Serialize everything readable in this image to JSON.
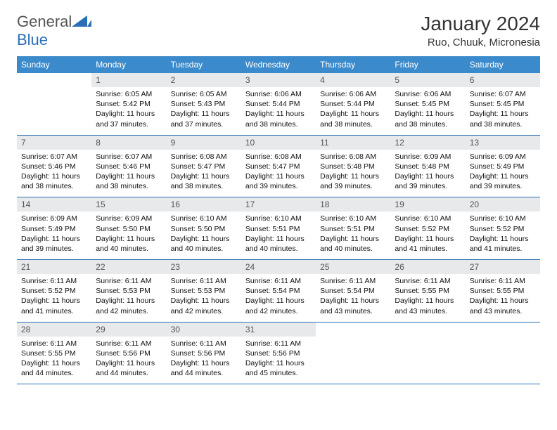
{
  "logo": {
    "text1": "General",
    "text2": "Blue"
  },
  "title": "January 2024",
  "location": "Ruo, Chuuk, Micronesia",
  "colors": {
    "header_bg": "#3b8acb",
    "header_text": "#ffffff",
    "daynum_bg": "#e8e9ea",
    "rule": "#2a6fb5",
    "logo_blue": "#2a6fb5"
  },
  "weekdays": [
    "Sunday",
    "Monday",
    "Tuesday",
    "Wednesday",
    "Thursday",
    "Friday",
    "Saturday"
  ],
  "start_offset": 1,
  "days": [
    {
      "n": 1,
      "sr": "6:05 AM",
      "ss": "5:42 PM",
      "dl": "11 hours and 37 minutes."
    },
    {
      "n": 2,
      "sr": "6:05 AM",
      "ss": "5:43 PM",
      "dl": "11 hours and 37 minutes."
    },
    {
      "n": 3,
      "sr": "6:06 AM",
      "ss": "5:44 PM",
      "dl": "11 hours and 38 minutes."
    },
    {
      "n": 4,
      "sr": "6:06 AM",
      "ss": "5:44 PM",
      "dl": "11 hours and 38 minutes."
    },
    {
      "n": 5,
      "sr": "6:06 AM",
      "ss": "5:45 PM",
      "dl": "11 hours and 38 minutes."
    },
    {
      "n": 6,
      "sr": "6:07 AM",
      "ss": "5:45 PM",
      "dl": "11 hours and 38 minutes."
    },
    {
      "n": 7,
      "sr": "6:07 AM",
      "ss": "5:46 PM",
      "dl": "11 hours and 38 minutes."
    },
    {
      "n": 8,
      "sr": "6:07 AM",
      "ss": "5:46 PM",
      "dl": "11 hours and 38 minutes."
    },
    {
      "n": 9,
      "sr": "6:08 AM",
      "ss": "5:47 PM",
      "dl": "11 hours and 38 minutes."
    },
    {
      "n": 10,
      "sr": "6:08 AM",
      "ss": "5:47 PM",
      "dl": "11 hours and 39 minutes."
    },
    {
      "n": 11,
      "sr": "6:08 AM",
      "ss": "5:48 PM",
      "dl": "11 hours and 39 minutes."
    },
    {
      "n": 12,
      "sr": "6:09 AM",
      "ss": "5:48 PM",
      "dl": "11 hours and 39 minutes."
    },
    {
      "n": 13,
      "sr": "6:09 AM",
      "ss": "5:49 PM",
      "dl": "11 hours and 39 minutes."
    },
    {
      "n": 14,
      "sr": "6:09 AM",
      "ss": "5:49 PM",
      "dl": "11 hours and 39 minutes."
    },
    {
      "n": 15,
      "sr": "6:09 AM",
      "ss": "5:50 PM",
      "dl": "11 hours and 40 minutes."
    },
    {
      "n": 16,
      "sr": "6:10 AM",
      "ss": "5:50 PM",
      "dl": "11 hours and 40 minutes."
    },
    {
      "n": 17,
      "sr": "6:10 AM",
      "ss": "5:51 PM",
      "dl": "11 hours and 40 minutes."
    },
    {
      "n": 18,
      "sr": "6:10 AM",
      "ss": "5:51 PM",
      "dl": "11 hours and 40 minutes."
    },
    {
      "n": 19,
      "sr": "6:10 AM",
      "ss": "5:52 PM",
      "dl": "11 hours and 41 minutes."
    },
    {
      "n": 20,
      "sr": "6:10 AM",
      "ss": "5:52 PM",
      "dl": "11 hours and 41 minutes."
    },
    {
      "n": 21,
      "sr": "6:11 AM",
      "ss": "5:52 PM",
      "dl": "11 hours and 41 minutes."
    },
    {
      "n": 22,
      "sr": "6:11 AM",
      "ss": "5:53 PM",
      "dl": "11 hours and 42 minutes."
    },
    {
      "n": 23,
      "sr": "6:11 AM",
      "ss": "5:53 PM",
      "dl": "11 hours and 42 minutes."
    },
    {
      "n": 24,
      "sr": "6:11 AM",
      "ss": "5:54 PM",
      "dl": "11 hours and 42 minutes."
    },
    {
      "n": 25,
      "sr": "6:11 AM",
      "ss": "5:54 PM",
      "dl": "11 hours and 43 minutes."
    },
    {
      "n": 26,
      "sr": "6:11 AM",
      "ss": "5:55 PM",
      "dl": "11 hours and 43 minutes."
    },
    {
      "n": 27,
      "sr": "6:11 AM",
      "ss": "5:55 PM",
      "dl": "11 hours and 43 minutes."
    },
    {
      "n": 28,
      "sr": "6:11 AM",
      "ss": "5:55 PM",
      "dl": "11 hours and 44 minutes."
    },
    {
      "n": 29,
      "sr": "6:11 AM",
      "ss": "5:56 PM",
      "dl": "11 hours and 44 minutes."
    },
    {
      "n": 30,
      "sr": "6:11 AM",
      "ss": "5:56 PM",
      "dl": "11 hours and 44 minutes."
    },
    {
      "n": 31,
      "sr": "6:11 AM",
      "ss": "5:56 PM",
      "dl": "11 hours and 45 minutes."
    }
  ],
  "labels": {
    "sunrise": "Sunrise:",
    "sunset": "Sunset:",
    "daylight": "Daylight:"
  }
}
